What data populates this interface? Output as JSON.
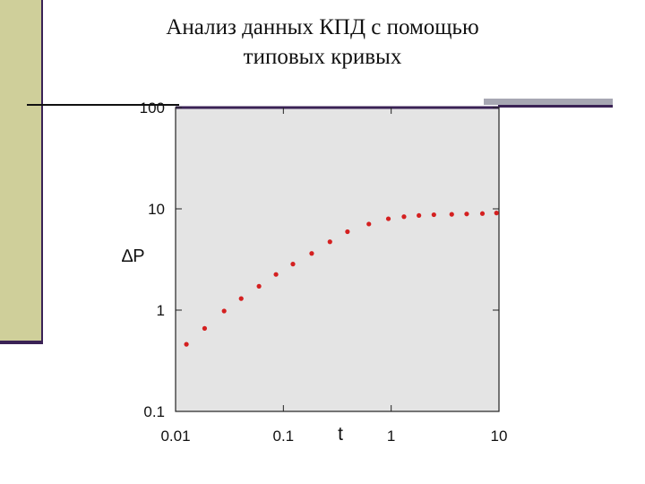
{
  "title_line1": "Анализ данных КПД с помощью",
  "title_line2": "типовых кривых",
  "chart_data": {
    "type": "scatter",
    "xlabel": "t",
    "ylabel": "∆P",
    "xscale": "log",
    "yscale": "log",
    "xlim": [
      0.01,
      10
    ],
    "ylim": [
      0.1,
      100
    ],
    "grid": false,
    "x_tick_labels": [
      "0.01",
      "0.1",
      "1",
      "10"
    ],
    "y_tick_labels": [
      "100",
      "10",
      "1",
      "0.1"
    ],
    "point_color": "#d42020",
    "plot_background": "#e4e4e4",
    "series": [
      {
        "x": [
          0.0126,
          0.0186,
          0.0282,
          0.0406,
          0.0594,
          0.0854,
          0.1226,
          0.1831,
          0.2702,
          0.3931,
          0.6208,
          0.9416,
          1.315,
          1.809,
          2.489,
          3.645,
          5.016,
          7.017,
          9.48
        ],
        "y": [
          0.46,
          0.66,
          0.98,
          1.3,
          1.72,
          2.25,
          2.85,
          3.63,
          4.73,
          5.95,
          7.08,
          7.98,
          8.37,
          8.6,
          8.75,
          8.83,
          8.9,
          8.98,
          9.1
        ]
      }
    ]
  }
}
